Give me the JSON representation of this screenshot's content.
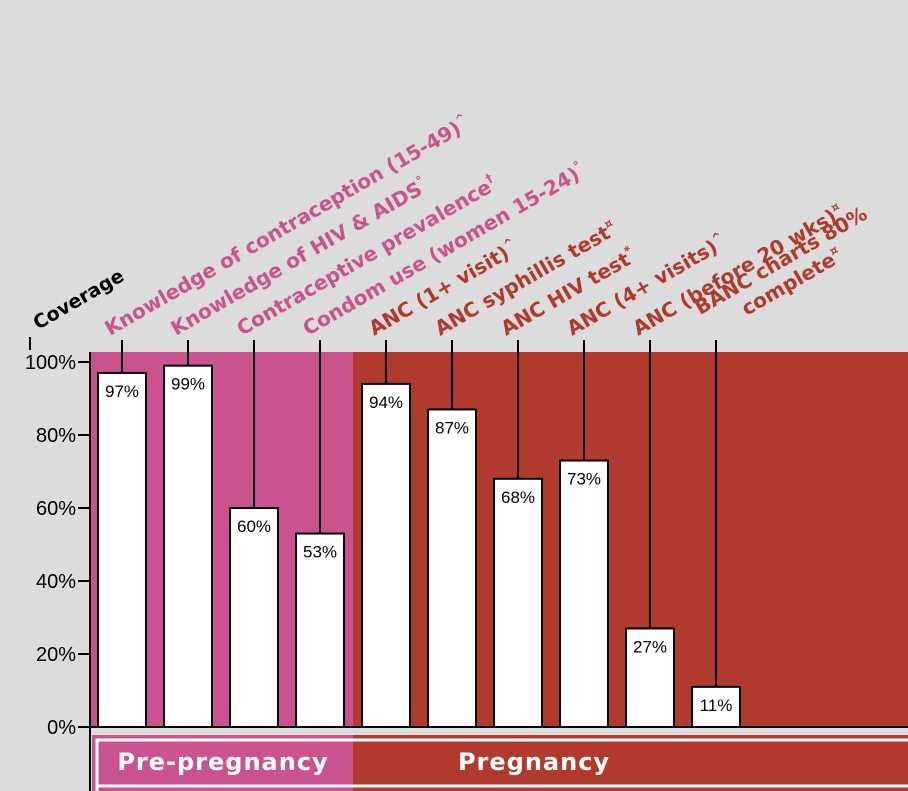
{
  "chart_data": {
    "type": "bar",
    "ylabel": "Coverage",
    "ylim": [
      0,
      100
    ],
    "y_ticks": [
      "0%",
      "20%",
      "40%",
      "60%",
      "80%",
      "100%"
    ],
    "grid": false,
    "value_suffix": "%",
    "categories": [
      "Knowledge of contraception (15-49)^",
      "Knowledge of HIV & AIDS°",
      "Contraceptive prevalence†",
      "Condom use (women 15-24)°",
      "ANC (1+ visit)^",
      "ANC syphillis test¤",
      "ANC HIV test*",
      "ANC (4+ visits)^",
      "ANC (before 20 wks)¤",
      "BANC charts 80% complete¤"
    ],
    "values": [
      97,
      99,
      60,
      53,
      94,
      87,
      68,
      73,
      27,
      11
    ],
    "phases": [
      {
        "name": "Pre-pregnancy",
        "color": "#c9538f",
        "categories": [
          0,
          1,
          2,
          3
        ]
      },
      {
        "name": "Pregnancy",
        "color": "#b03a2e",
        "categories": [
          4,
          5,
          6,
          7,
          8,
          9
        ]
      }
    ]
  }
}
